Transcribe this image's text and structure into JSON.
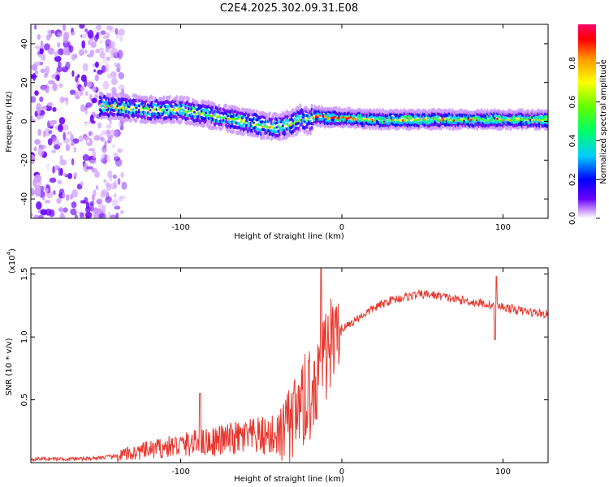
{
  "title": "C2E4.2025.302.09.31.E08",
  "chart_data": [
    {
      "type": "heatmap",
      "name": "spectrogram",
      "xlabel": "Height of straight line (km)",
      "ylabel": "Frequency (Hz)",
      "xlim": [
        -193,
        128
      ],
      "ylim": [
        -50,
        50
      ],
      "xticks": [
        -100,
        0,
        100
      ],
      "yticks": [
        -40,
        -20,
        0,
        20,
        40
      ],
      "colorbar": {
        "label": "Normalized spectral amplitude",
        "range": [
          0,
          1
        ],
        "ticks": [
          0.0,
          0.2,
          0.4,
          0.6,
          0.8
        ],
        "colors": [
          "#ffffff",
          "#cc99ff",
          "#6a00ff",
          "#0000ff",
          "#00ccff",
          "#00ff66",
          "#66ff00",
          "#ffff00",
          "#ff9900",
          "#ff0000",
          "#ff0066"
        ]
      },
      "ridge": {
        "x": [
          -148,
          -120,
          -100,
          -80,
          -60,
          -50,
          -40,
          -30,
          -25,
          -20,
          -17,
          -10,
          0,
          20,
          50,
          100,
          128
        ],
        "freq": [
          8,
          6,
          6,
          3,
          0,
          -2,
          -3,
          -1,
          2,
          0,
          3,
          2,
          2,
          1,
          1,
          1,
          1
        ]
      },
      "noise_region_x": [
        -193,
        -135
      ]
    },
    {
      "type": "line",
      "name": "snr",
      "xlabel": "Height of straight line (km)",
      "ylabel": "SNR (10 * v/v)",
      "multiplier": "(x10",
      "exponent": "4",
      "xlim": [
        -193,
        128
      ],
      "ylim": [
        0,
        1.55
      ],
      "xticks": [
        -100,
        0,
        100
      ],
      "yticks": [
        0.5,
        1.0,
        1.5
      ],
      "ytick_labels": [
        "0.5",
        "1.0",
        "1.5"
      ],
      "envelope": {
        "x": [
          -193,
          -160,
          -140,
          -120,
          -100,
          -80,
          -60,
          -40,
          -30,
          -25,
          -20,
          -15,
          -10,
          -5,
          0,
          10,
          20,
          30,
          40,
          50,
          60,
          70,
          80,
          90,
          100,
          110,
          128
        ],
        "y": [
          0.03,
          0.03,
          0.05,
          0.1,
          0.14,
          0.17,
          0.2,
          0.22,
          0.3,
          0.45,
          0.6,
          0.75,
          0.9,
          1.0,
          1.06,
          1.15,
          1.23,
          1.29,
          1.32,
          1.34,
          1.33,
          1.3,
          1.28,
          1.26,
          1.24,
          1.21,
          1.18
        ]
      },
      "spikes": [
        {
          "x": -88,
          "y": 0.55
        },
        {
          "x": -13,
          "y": 1.55
        },
        {
          "x": 96,
          "y": 1.48
        },
        {
          "x": 95,
          "y": 0.98
        }
      ]
    }
  ]
}
